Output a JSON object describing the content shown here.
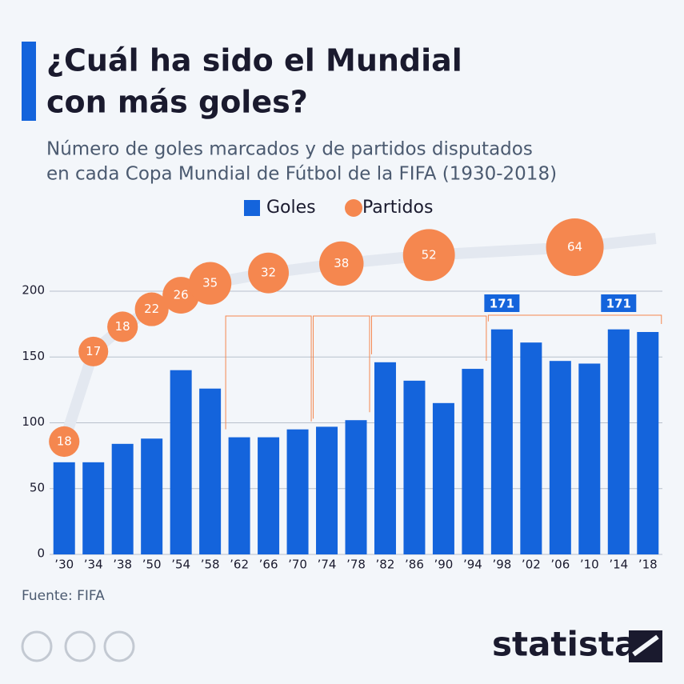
{
  "chart_data": {
    "type": "bar",
    "title": [
      "¿Cuál ha sido el Mundial",
      "con más goles?"
    ],
    "subtitle": [
      "Número de goles marcados y de partidos disputados",
      "en cada Copa Mundial de Fútbol de la FIFA (1930-2018)"
    ],
    "categories": [
      "’30",
      "’34",
      "’38",
      "’50",
      "’54",
      "’58",
      "’62",
      "’66",
      "’70",
      "’74",
      "’78",
      "’82",
      "’86",
      "’90",
      "’94",
      "’98",
      "’02",
      "’06",
      "’10",
      "’14",
      "’18"
    ],
    "series": [
      {
        "name": "Goles",
        "color": "#1464dc",
        "values": [
          70,
          70,
          84,
          88,
          140,
          126,
          89,
          89,
          95,
          97,
          102,
          146,
          132,
          115,
          141,
          171,
          161,
          147,
          145,
          171,
          169
        ]
      },
      {
        "name": "Partidos",
        "color": "#f5874f",
        "values": [
          18,
          17,
          18,
          22,
          26,
          35,
          32,
          32,
          32,
          38,
          38,
          52,
          52,
          52,
          52,
          64,
          64,
          64,
          64,
          64,
          64
        ]
      }
    ],
    "ylim": [
      0,
      200
    ],
    "yticks": [
      0,
      50,
      100,
      150,
      200
    ],
    "grid": true,
    "source": "Fuente: FIFA",
    "brand": "statista"
  }
}
